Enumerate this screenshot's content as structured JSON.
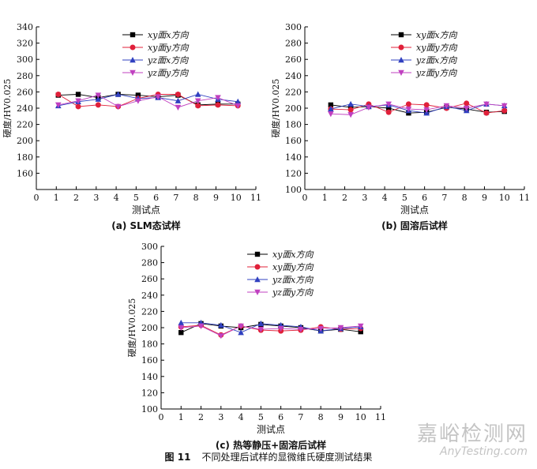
{
  "chart_data": [
    {
      "type": "line",
      "panel_caption": "(a) SLM态试样",
      "xlabel": "测试点",
      "ylabel": "硬度/HV0.025",
      "xlim": [
        0,
        11
      ],
      "ylim": [
        140,
        340
      ],
      "xticks": [
        0,
        1,
        2,
        3,
        4,
        5,
        6,
        7,
        8,
        9,
        10,
        11
      ],
      "yticks": [
        160,
        180,
        200,
        220,
        240,
        260,
        280,
        300,
        320,
        340
      ],
      "grid": false,
      "legend_position": "top-center",
      "series": [
        {
          "name": "xy面x方向",
          "marker": "square",
          "color": "#000000",
          "x": [
            1.1,
            2.1,
            3.1,
            4.1,
            5.1,
            6.1,
            7.1,
            8.1,
            9.1,
            10.1
          ],
          "y": [
            256,
            257,
            253,
            257,
            256,
            254,
            256,
            244,
            245,
            245
          ]
        },
        {
          "name": "xy面y方向",
          "marker": "circle",
          "color": "#e0203a",
          "x": [
            1.1,
            2.1,
            3.1,
            4.1,
            5.1,
            6.1,
            7.1,
            8.1,
            9.1,
            10.1
          ],
          "y": [
            257,
            242,
            244,
            242,
            252,
            257,
            257,
            243,
            244,
            243
          ]
        },
        {
          "name": "yz面x方向",
          "marker": "triangle-up",
          "color": "#3040c0",
          "x": [
            1.1,
            2.1,
            3.1,
            4.1,
            5.1,
            6.1,
            7.1,
            8.1,
            9.1,
            10.1
          ],
          "y": [
            243,
            248,
            251,
            257,
            252,
            253,
            249,
            257,
            251,
            248
          ]
        },
        {
          "name": "yz面y方向",
          "marker": "triangle-down",
          "color": "#c040c0",
          "x": [
            1.1,
            2.1,
            3.1,
            4.1,
            5.1,
            6.1,
            7.1,
            8.1,
            9.1,
            10.1
          ],
          "y": [
            244,
            249,
            256,
            242,
            249,
            254,
            241,
            249,
            253,
            243
          ]
        }
      ]
    },
    {
      "type": "line",
      "panel_caption": "(b) 固溶后试样",
      "xlabel": "测试点",
      "ylabel": "硬度/HV0.025",
      "xlim": [
        0,
        11
      ],
      "ylim": [
        100,
        300
      ],
      "xticks": [
        0,
        1,
        2,
        3,
        4,
        5,
        6,
        7,
        8,
        9,
        10,
        11
      ],
      "yticks": [
        100,
        120,
        140,
        160,
        180,
        200,
        220,
        240,
        260,
        280,
        300
      ],
      "grid": false,
      "legend_position": "top-center",
      "series": [
        {
          "name": "xy面x方向",
          "marker": "square",
          "color": "#000000",
          "x": [
            1.3,
            2.3,
            3.2,
            4.2,
            5.2,
            6.1,
            7.1,
            8.1,
            9.1,
            10.0
          ],
          "y": [
            204,
            201,
            202,
            200,
            194,
            195,
            201,
            199,
            195,
            196
          ]
        },
        {
          "name": "xy面y方向",
          "marker": "circle",
          "color": "#e0203a",
          "x": [
            1.3,
            2.3,
            3.2,
            4.2,
            5.2,
            6.1,
            7.1,
            8.1,
            9.1,
            10.0
          ],
          "y": [
            199,
            198,
            205,
            195,
            205,
            204,
            200,
            206,
            194,
            197
          ]
        },
        {
          "name": "yz面x方向",
          "marker": "triangle-up",
          "color": "#3040c0",
          "x": [
            1.3,
            2.3,
            3.2,
            4.2,
            5.2,
            6.1,
            7.1,
            8.1,
            9.1,
            10.0
          ],
          "y": [
            199,
            205,
            202,
            204,
            197,
            194,
            202,
            197,
            205,
            203
          ]
        },
        {
          "name": "yz面y方向",
          "marker": "triangle-down",
          "color": "#c040c0",
          "x": [
            1.3,
            2.3,
            3.2,
            4.2,
            5.2,
            6.1,
            7.1,
            8.1,
            9.1,
            10.0
          ],
          "y": [
            193,
            192,
            201,
            205,
            199,
            198,
            203,
            200,
            205,
            203
          ]
        }
      ]
    },
    {
      "type": "line",
      "panel_caption": "(c) 热等静压+固溶后试样",
      "xlabel": "测试点",
      "ylabel": "硬度/HV0.025",
      "xlim": [
        0,
        11
      ],
      "ylim": [
        100,
        300
      ],
      "xticks": [
        0,
        1,
        2,
        3,
        4,
        5,
        6,
        7,
        8,
        9,
        10,
        11
      ],
      "yticks": [
        100,
        120,
        140,
        160,
        180,
        200,
        220,
        240,
        260,
        280,
        300
      ],
      "grid": false,
      "legend_position": "top-center",
      "series": [
        {
          "name": "xy面x方向",
          "marker": "square",
          "color": "#000000",
          "x": [
            1,
            2,
            3,
            4,
            5,
            6,
            7,
            8,
            9,
            10
          ],
          "y": [
            194,
            205,
            202,
            200,
            204,
            202,
            200,
            196,
            198,
            195
          ]
        },
        {
          "name": "xy面y方向",
          "marker": "circle",
          "color": "#e0203a",
          "x": [
            1,
            2,
            3,
            4,
            5,
            6,
            7,
            8,
            9,
            10
          ],
          "y": [
            201,
            203,
            191,
            202,
            197,
            196,
            197,
            201,
            198,
            199
          ]
        },
        {
          "name": "yz面x方向",
          "marker": "triangle-up",
          "color": "#3040c0",
          "x": [
            1,
            2,
            3,
            4,
            5,
            6,
            7,
            8,
            9,
            10
          ],
          "y": [
            206,
            206,
            203,
            194,
            205,
            203,
            201,
            196,
            199,
            201
          ]
        },
        {
          "name": "yz面y方向",
          "marker": "triangle-down",
          "color": "#c040c0",
          "x": [
            1,
            2,
            3,
            4,
            5,
            6,
            7,
            8,
            9,
            10
          ],
          "y": [
            200,
            202,
            190,
            202,
            198,
            199,
            198,
            199,
            200,
            202
          ]
        }
      ]
    }
  ],
  "figure": {
    "number": "图 11",
    "caption": "不同处理后试样的显微维氏硬度测试结果"
  },
  "watermark": {
    "line1": "嘉峪检测网",
    "line2": "AnyTesting.com"
  }
}
